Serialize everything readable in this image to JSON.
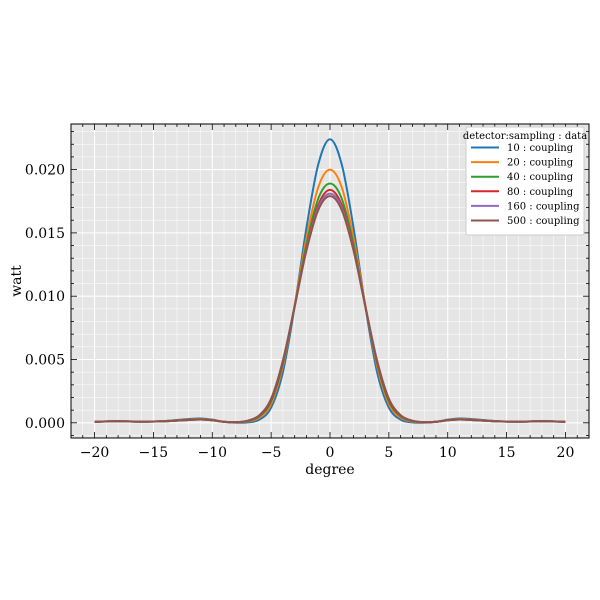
{
  "chart_data": {
    "type": "line",
    "title": "",
    "xlabel": "degree",
    "ylabel": "watt",
    "xlim": [
      -22,
      22
    ],
    "ylim": [
      -0.0012,
      0.0236
    ],
    "xticks": [
      -20,
      -15,
      -10,
      -5,
      0,
      5,
      10,
      15,
      20
    ],
    "xtick_labels": [
      "−20",
      "−15",
      "−10",
      "−5",
      "0",
      "5",
      "10",
      "15",
      "20"
    ],
    "yticks": [
      0.0,
      0.005,
      0.01,
      0.015,
      0.02
    ],
    "ytick_labels": [
      "0.000",
      "0.005",
      "0.010",
      "0.015",
      "0.020"
    ],
    "grid": true,
    "legend": {
      "title": "detector:sampling : data",
      "placement": "top-right"
    },
    "series": [
      {
        "name": "10 : coupling",
        "color": "#1f77b4",
        "x": [
          -20,
          -18,
          -16,
          -14,
          -12,
          -11,
          -10,
          -9,
          -8,
          -7,
          -6,
          -5,
          -4,
          -3,
          -2,
          -1,
          0,
          1,
          2,
          3,
          4,
          5,
          6,
          7,
          8,
          9,
          10,
          11,
          12,
          14,
          16,
          18,
          20
        ],
        "y": [
          7e-05,
          0.00014,
          8e-05,
          0.00014,
          0.0003,
          0.00034,
          0.00025,
          7e-05,
          1e-05,
          3e-05,
          0.00025,
          0.0012,
          0.004,
          0.0092,
          0.0154,
          0.0204,
          0.0224,
          0.0204,
          0.0154,
          0.0092,
          0.004,
          0.0012,
          0.00025,
          3e-05,
          1e-05,
          7e-05,
          0.00025,
          0.00034,
          0.0003,
          0.00014,
          8e-05,
          0.00014,
          7e-05
        ]
      },
      {
        "name": "20 : coupling",
        "color": "#ff7f0e",
        "x": [
          -20,
          -18,
          -16,
          -14,
          -12,
          -11,
          -10,
          -9,
          -8,
          -7,
          -6,
          -5,
          -4,
          -3,
          -2,
          -1,
          0,
          1,
          2,
          3,
          4,
          5,
          6,
          7,
          8,
          9,
          10,
          11,
          12,
          14,
          16,
          18,
          20
        ],
        "y": [
          8e-05,
          0.00013,
          9e-05,
          0.00013,
          0.00026,
          0.0003,
          0.00022,
          8e-05,
          3e-05,
          0.0001,
          0.0004,
          0.0015,
          0.0045,
          0.0093,
          0.0146,
          0.0186,
          0.02,
          0.0186,
          0.0146,
          0.0093,
          0.0045,
          0.0015,
          0.0004,
          0.0001,
          3e-05,
          8e-05,
          0.00022,
          0.0003,
          0.00026,
          0.00013,
          9e-05,
          0.00013,
          8e-05
        ]
      },
      {
        "name": "40 : coupling",
        "color": "#2ca02c",
        "x": [
          -20,
          -18,
          -16,
          -14,
          -12,
          -11,
          -10,
          -9,
          -8,
          -7,
          -6,
          -5,
          -4,
          -3,
          -2,
          -1,
          0,
          1,
          2,
          3,
          4,
          5,
          6,
          7,
          8,
          9,
          10,
          11,
          12,
          14,
          16,
          18,
          20
        ],
        "y": [
          8e-05,
          0.00012,
          9e-05,
          0.00012,
          0.00024,
          0.00028,
          0.0002,
          8e-05,
          4e-05,
          0.00013,
          0.0005,
          0.0017,
          0.0047,
          0.0092,
          0.0141,
          0.0177,
          0.0189,
          0.0177,
          0.0141,
          0.0092,
          0.0047,
          0.0017,
          0.0005,
          0.00013,
          4e-05,
          8e-05,
          0.0002,
          0.00028,
          0.00024,
          0.00012,
          9e-05,
          0.00012,
          8e-05
        ]
      },
      {
        "name": "80 : coupling",
        "color": "#d62728",
        "x": [
          -20,
          -18,
          -16,
          -14,
          -12,
          -11,
          -10,
          -9,
          -8,
          -7,
          -6,
          -5,
          -4,
          -3,
          -2,
          -1,
          0,
          1,
          2,
          3,
          4,
          5,
          6,
          7,
          8,
          9,
          10,
          11,
          12,
          14,
          16,
          18,
          20
        ],
        "y": [
          8e-05,
          0.00012,
          9e-05,
          0.00012,
          0.00023,
          0.00027,
          0.0002,
          8e-05,
          5e-05,
          0.00015,
          0.00055,
          0.0018,
          0.0048,
          0.0092,
          0.0138,
          0.0172,
          0.0184,
          0.0172,
          0.0138,
          0.0092,
          0.0048,
          0.0018,
          0.00055,
          0.00015,
          5e-05,
          8e-05,
          0.0002,
          0.00027,
          0.00023,
          0.00012,
          9e-05,
          0.00012,
          8e-05
        ]
      },
      {
        "name": "160 : coupling",
        "color": "#9467bd",
        "x": [
          -20,
          -18,
          -16,
          -14,
          -12,
          -11,
          -10,
          -9,
          -8,
          -7,
          -6,
          -5,
          -4,
          -3,
          -2,
          -1,
          0,
          1,
          2,
          3,
          4,
          5,
          6,
          7,
          8,
          9,
          10,
          11,
          12,
          14,
          16,
          18,
          20
        ],
        "y": [
          8e-05,
          0.00012,
          9e-05,
          0.00012,
          0.00022,
          0.00026,
          0.0002,
          8e-05,
          5e-05,
          0.00016,
          0.00058,
          0.0019,
          0.0049,
          0.0092,
          0.0137,
          0.017,
          0.0181,
          0.017,
          0.0137,
          0.0092,
          0.0049,
          0.0019,
          0.00058,
          0.00016,
          5e-05,
          8e-05,
          0.0002,
          0.00026,
          0.00022,
          0.00012,
          9e-05,
          0.00012,
          8e-05
        ]
      },
      {
        "name": "500 : coupling",
        "color": "#8c564b",
        "x": [
          -20,
          -18,
          -16,
          -14,
          -12,
          -11,
          -10,
          -9,
          -8,
          -7,
          -6,
          -5,
          -4,
          -3,
          -2,
          -1,
          0,
          1,
          2,
          3,
          4,
          5,
          6,
          7,
          8,
          9,
          10,
          11,
          12,
          14,
          16,
          18,
          20
        ],
        "y": [
          8e-05,
          0.00012,
          9e-05,
          0.00012,
          0.00022,
          0.00026,
          0.0002,
          8e-05,
          5e-05,
          0.00017,
          0.0006,
          0.0019,
          0.0049,
          0.0092,
          0.0136,
          0.0168,
          0.0179,
          0.0168,
          0.0136,
          0.0092,
          0.0049,
          0.0019,
          0.0006,
          0.00017,
          5e-05,
          8e-05,
          0.0002,
          0.00026,
          0.00022,
          0.00012,
          9e-05,
          0.00012,
          8e-05
        ]
      }
    ]
  }
}
